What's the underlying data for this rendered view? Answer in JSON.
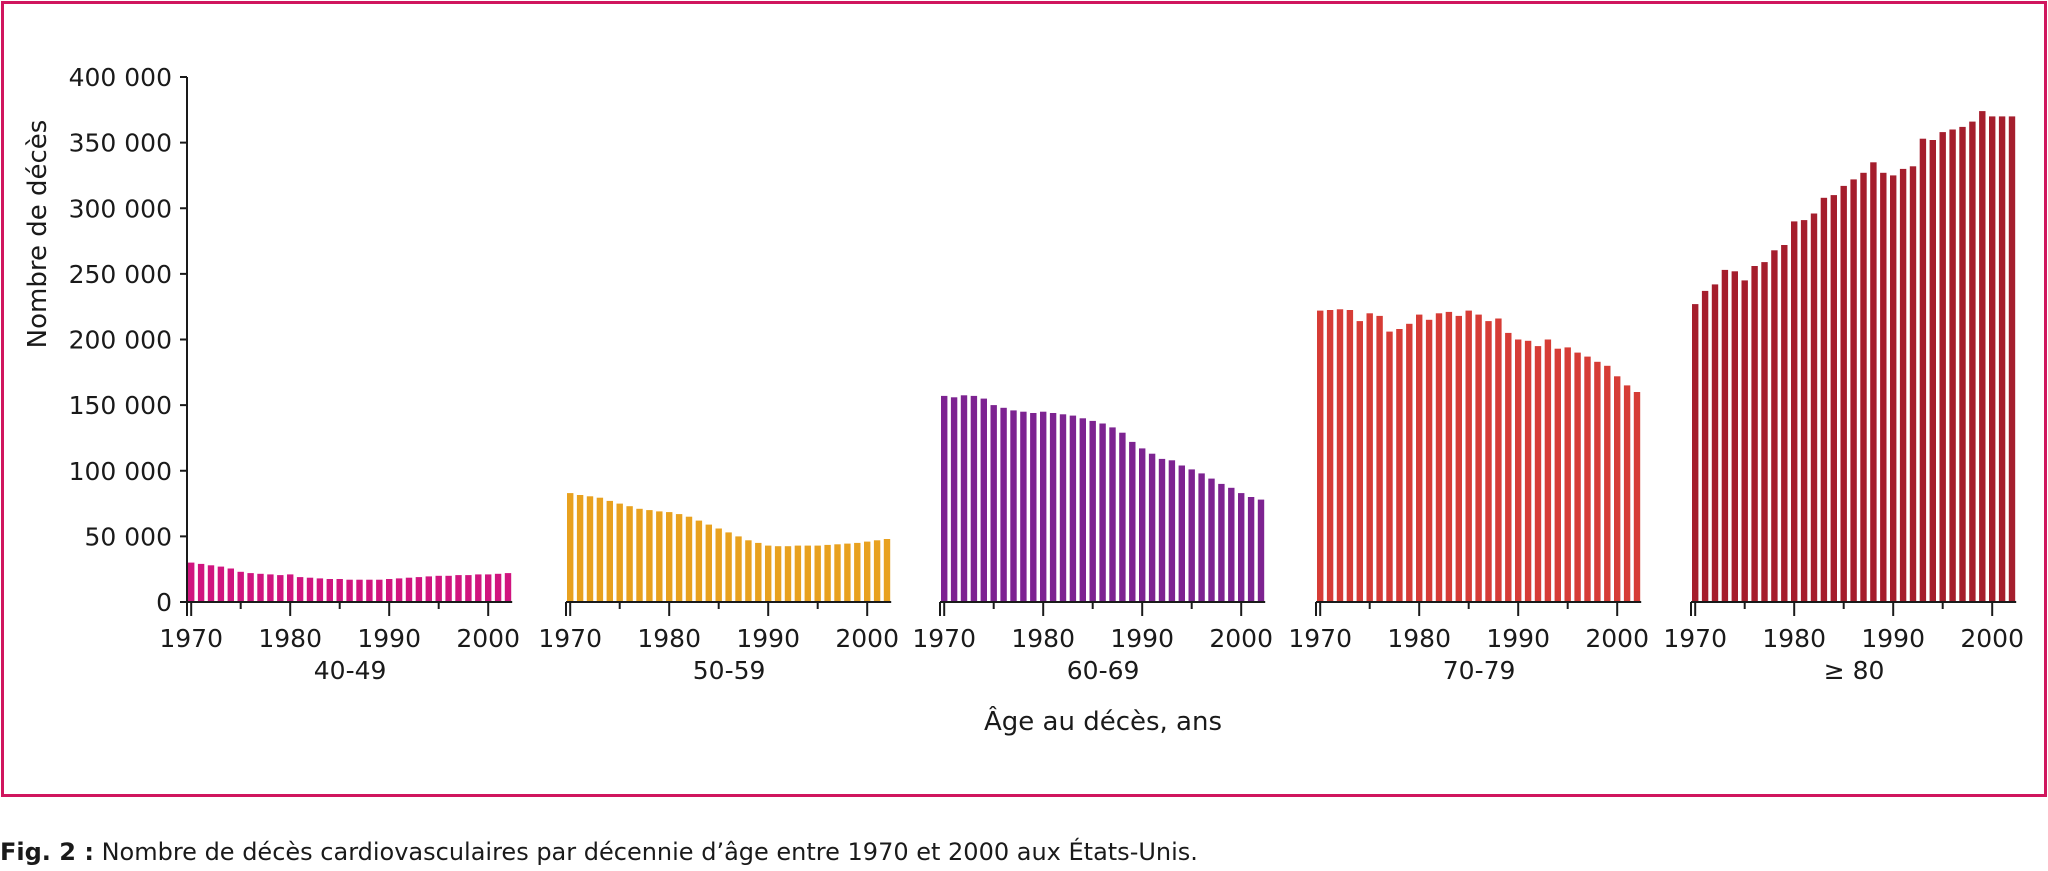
{
  "caption": {
    "prefix": "Fig. 2 :",
    "text": "Nombre de décès cardiovasculaires par décennie d’âge entre 1970 et 2000 aux États-Unis."
  },
  "chart_data": {
    "type": "bar",
    "ylabel": "Nombre de décès",
    "xlabel": "Âge au décès, ans",
    "ylim": [
      0,
      400000
    ],
    "yticks": [
      0,
      50000,
      100000,
      150000,
      200000,
      250000,
      300000,
      350000,
      400000
    ],
    "ytick_labels": [
      "0",
      "50 000",
      "100 000",
      "150 000",
      "200 000",
      "250 000",
      "300 000",
      "350 000",
      "400 000"
    ],
    "xticks": [
      1970,
      1980,
      1990,
      2000
    ],
    "xtick_labels": [
      "1970",
      "1980",
      "1990",
      "2000"
    ],
    "x": [
      1970,
      1971,
      1972,
      1973,
      1974,
      1975,
      1976,
      1977,
      1978,
      1979,
      1980,
      1981,
      1982,
      1983,
      1984,
      1985,
      1986,
      1987,
      1988,
      1989,
      1990,
      1991,
      1992,
      1993,
      1994,
      1995,
      1996,
      1997,
      1998,
      1999,
      2000,
      2001,
      2002
    ],
    "grid": false,
    "series": [
      {
        "name": "40-49",
        "color": "#d0157f",
        "values": [
          30000,
          29000,
          28000,
          27000,
          25500,
          23000,
          22000,
          21500,
          21000,
          20500,
          21000,
          19000,
          18500,
          18000,
          17500,
          17500,
          17000,
          17000,
          17000,
          17000,
          17500,
          18000,
          18500,
          19000,
          19500,
          20000,
          20000,
          20500,
          20500,
          21000,
          21000,
          21500,
          22000
        ]
      },
      {
        "name": "50-59",
        "color": "#e8a11f",
        "values": [
          83000,
          81500,
          80500,
          79500,
          77000,
          75000,
          73000,
          71000,
          70000,
          69000,
          68500,
          67000,
          65000,
          62000,
          59000,
          56000,
          53000,
          50000,
          47000,
          45000,
          43000,
          42500,
          42500,
          43000,
          43000,
          43000,
          43500,
          44000,
          44500,
          45000,
          46000,
          47000,
          48000
        ]
      },
      {
        "name": "60-69",
        "color": "#7d2391",
        "values": [
          157000,
          156000,
          157500,
          157000,
          155000,
          150000,
          148000,
          146000,
          145000,
          144000,
          145000,
          144000,
          143000,
          142000,
          140000,
          138000,
          136000,
          133000,
          129000,
          122000,
          117000,
          113000,
          109000,
          108000,
          104000,
          101000,
          98000,
          94000,
          90000,
          87000,
          83000,
          80000,
          78000
        ]
      },
      {
        "name": "70-79",
        "color": "#d63c35",
        "values": [
          222000,
          222500,
          223000,
          222500,
          214000,
          220000,
          218000,
          206000,
          208000,
          212000,
          219000,
          215000,
          220000,
          221000,
          218000,
          222000,
          219000,
          214000,
          216000,
          205000,
          200000,
          199000,
          195000,
          200000,
          193000,
          194000,
          190000,
          187000,
          183000,
          180000,
          172000,
          165000,
          160000
        ]
      },
      {
        "name": "≥ 80",
        "color": "#a51e2d",
        "values": [
          227000,
          237000,
          242000,
          253000,
          252000,
          245000,
          256000,
          259000,
          268000,
          272000,
          290000,
          291000,
          296000,
          308000,
          310000,
          317000,
          322000,
          327000,
          335000,
          327000,
          325000,
          330000,
          332000,
          353000,
          352000,
          358000,
          360000,
          362000,
          366000,
          374000,
          370000,
          370000,
          370000
        ]
      }
    ]
  }
}
